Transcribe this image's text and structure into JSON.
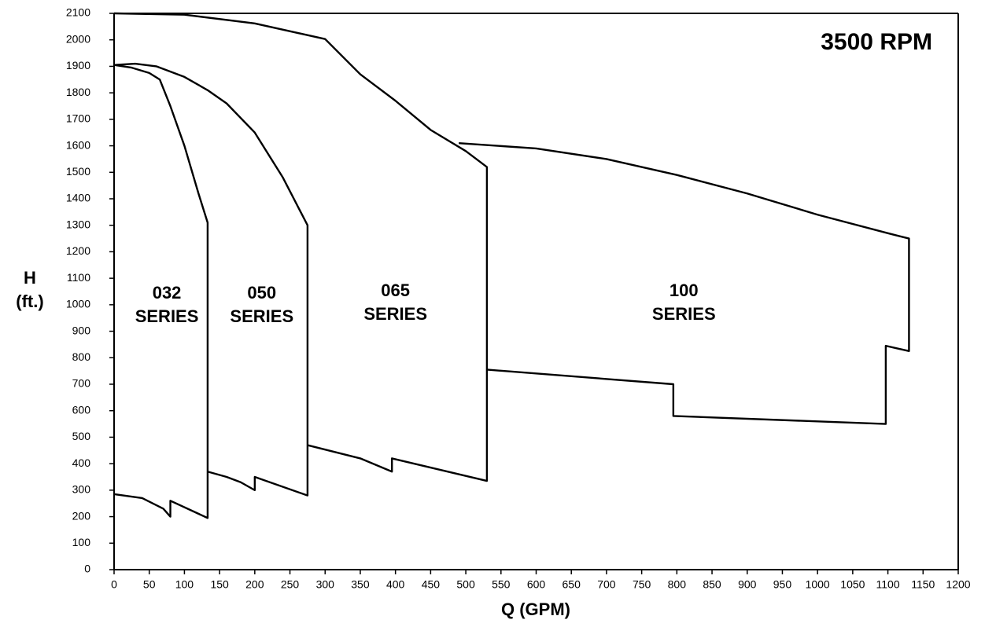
{
  "chart_data": {
    "type": "line",
    "annotation": "3500 RPM",
    "xlabel": "Q (GPM)",
    "ylabel": [
      "H",
      "(ft.)"
    ],
    "xlim": [
      0,
      1200
    ],
    "ylim": [
      0,
      2100
    ],
    "xticks": [
      0,
      50,
      100,
      150,
      200,
      250,
      300,
      350,
      400,
      450,
      500,
      550,
      600,
      650,
      700,
      750,
      800,
      850,
      900,
      950,
      1000,
      1050,
      1100,
      1150,
      1200
    ],
    "yticks": [
      0,
      100,
      200,
      300,
      400,
      500,
      600,
      700,
      800,
      900,
      1000,
      1100,
      1200,
      1300,
      1400,
      1500,
      1600,
      1700,
      1800,
      1900,
      2000,
      2100
    ],
    "color": "#000000",
    "series": [
      {
        "label": [
          "032",
          "SERIES"
        ],
        "x": [
          0,
          25,
          50,
          65,
          80,
          100,
          120,
          133,
          133,
          80,
          80,
          70,
          40,
          0
        ],
        "values": [
          1905,
          1895,
          1875,
          1850,
          1750,
          1600,
          1420,
          1310,
          195,
          260,
          200,
          230,
          270,
          285
        ]
      },
      {
        "label": [
          "050",
          "SERIES"
        ],
        "x": [
          0,
          30,
          60,
          100,
          133,
          160,
          200,
          240,
          275,
          275,
          200,
          200,
          180,
          160,
          133
        ],
        "values": [
          1905,
          1910,
          1900,
          1860,
          1810,
          1760,
          1650,
          1480,
          1300,
          280,
          350,
          300,
          330,
          350,
          370
        ]
      },
      {
        "label": [
          "065",
          "SERIES"
        ],
        "x": [
          0,
          100,
          200,
          300,
          350,
          400,
          450,
          500,
          530,
          530,
          395,
          395,
          350,
          275
        ],
        "values": [
          2100,
          2095,
          2062,
          2003,
          1870,
          1770,
          1660,
          1580,
          1520,
          335,
          420,
          370,
          420,
          470
        ]
      },
      {
        "label": [
          "100",
          "SERIES"
        ],
        "x": [
          490,
          600,
          700,
          800,
          900,
          1000,
          1100,
          1130,
          1130,
          1097,
          1097,
          795,
          795,
          530
        ],
        "values": [
          1610,
          1590,
          1550,
          1490,
          1420,
          1340,
          1270,
          1250,
          825,
          845,
          550,
          580,
          700,
          755
        ]
      }
    ]
  }
}
